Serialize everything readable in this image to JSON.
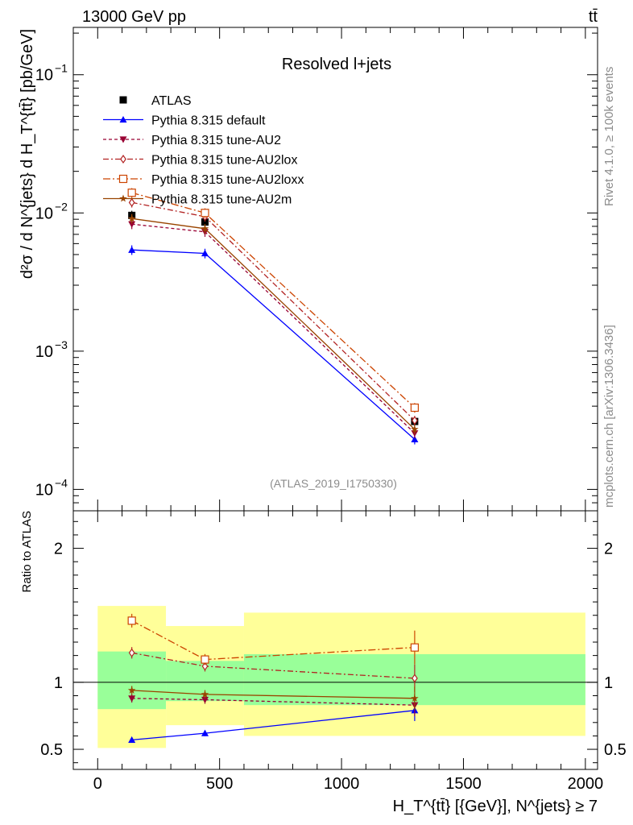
{
  "header": {
    "energy_label": "13000 GeV pp",
    "process_label": "tt̄"
  },
  "side_labels": {
    "rivet": "Rivet 4.1.0, ≥ 100k events",
    "mcplots": "mcplots.cern.ch [arXiv:1306.3436]"
  },
  "colors": {
    "atlas": "#000000",
    "default": "#0000ff",
    "au2": "#990033",
    "au2lox": "#b22222",
    "au2loxx": "#cc4400",
    "au2m": "#994400",
    "band_inner": "#99ff99",
    "band_outer": "#ffff99"
  },
  "chart_data": [
    {
      "type": "line",
      "panel": "main",
      "title": "Resolved l+jets",
      "analysis_tag": "(ATLAS_2019_I1750330)",
      "xlabel": "H_T^{tt̄} [{GeV}], N^{jets} ≥ 7",
      "ylabel": "d²σ / d N^{jets} d H_T^{tt̄} [pb/GeV]",
      "xlim": [
        -100,
        2050
      ],
      "ylim": [
        7e-05,
        0.22
      ],
      "yscale": "log",
      "x_ticks": [
        "0",
        "500",
        "1000",
        "1500",
        "2000"
      ],
      "y_ticks": [
        {
          "base": "10",
          "exp": "−4",
          "value": 0.0001
        },
        {
          "base": "10",
          "exp": "−3",
          "value": 0.001
        },
        {
          "base": "10",
          "exp": "−2",
          "value": 0.01
        },
        {
          "base": "10",
          "exp": "−1",
          "value": 0.1
        }
      ],
      "x": [
        140,
        440,
        1300
      ],
      "series": [
        {
          "name": "ATLAS",
          "key": "atlas",
          "marker": "square",
          "values": [
            0.0096,
            0.0086,
            0.00031
          ]
        },
        {
          "name": "Pythia 8.315 default",
          "key": "default",
          "marker": "triangle-up",
          "values": [
            0.0054,
            0.0051,
            0.00023
          ]
        },
        {
          "name": "Pythia 8.315 tune-AU2",
          "key": "au2",
          "marker": "triangle-down",
          "values": [
            0.0083,
            0.0073,
            0.000255
          ]
        },
        {
          "name": "Pythia 8.315 tune-AU2lox",
          "key": "au2lox",
          "marker": "diamond-open",
          "values": [
            0.0119,
            0.0094,
            0.000315
          ]
        },
        {
          "name": "Pythia 8.315 tune-AU2loxx",
          "key": "au2loxx",
          "marker": "square-open",
          "values": [
            0.014,
            0.01,
            0.00039
          ]
        },
        {
          "name": "Pythia 8.315 tune-AU2m",
          "key": "au2m",
          "marker": "star",
          "values": [
            0.0091,
            0.0077,
            0.000272
          ]
        }
      ]
    },
    {
      "type": "line",
      "panel": "ratio",
      "ylabel": "Ratio to ATLAS",
      "xlim": [
        -100,
        2050
      ],
      "ylim": [
        0.35,
        2.28
      ],
      "y_ticks": [
        "0.5",
        "1",
        "2"
      ],
      "reference": 1,
      "bins": [
        {
          "x_low": 0,
          "x_high": 280,
          "inner": [
            0.8,
            1.23
          ],
          "outer": [
            0.51,
            1.57
          ]
        },
        {
          "x_low": 280,
          "x_high": 600,
          "inner": [
            0.86,
            1.16
          ],
          "outer": [
            0.68,
            1.42
          ]
        },
        {
          "x_low": 600,
          "x_high": 2000,
          "inner": [
            0.83,
            1.21
          ],
          "outer": [
            0.6,
            1.52
          ]
        }
      ],
      "x": [
        140,
        440,
        1300
      ],
      "series": [
        {
          "name": "Pythia 8.315 default",
          "key": "default",
          "values": [
            0.57,
            0.62,
            0.79
          ]
        },
        {
          "name": "Pythia 8.315 tune-AU2",
          "key": "au2",
          "values": [
            0.88,
            0.87,
            0.83
          ]
        },
        {
          "name": "Pythia 8.315 tune-AU2lox",
          "key": "au2lox",
          "values": [
            1.22,
            1.12,
            1.03
          ]
        },
        {
          "name": "Pythia 8.315 tune-AU2loxx",
          "key": "au2loxx",
          "values": [
            1.46,
            1.17,
            1.26
          ]
        },
        {
          "name": "Pythia 8.315 tune-AU2m",
          "key": "au2m",
          "values": [
            0.94,
            0.91,
            0.88
          ]
        }
      ]
    }
  ]
}
